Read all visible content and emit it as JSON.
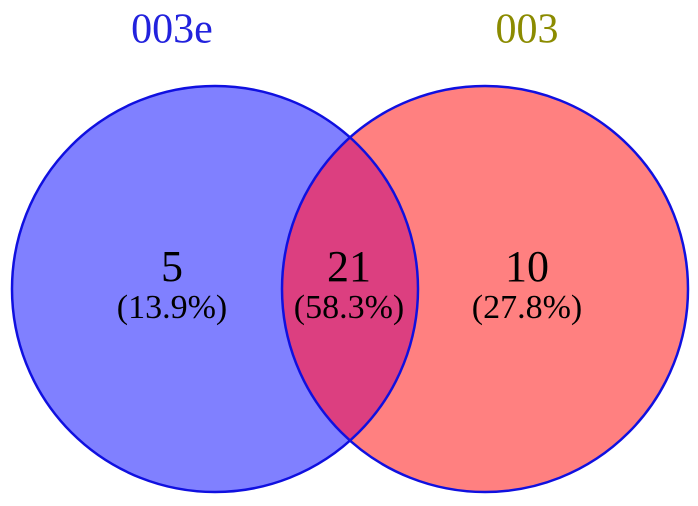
{
  "sets": [
    {
      "label": "003e",
      "color": "#2222dd"
    },
    {
      "label": "003",
      "color": "#8b8b00"
    }
  ],
  "regions": [
    {
      "count": 5,
      "percent": "(13.9%)"
    },
    {
      "count": 21,
      "percent": "(58.3%)"
    },
    {
      "count": 10,
      "percent": "(27.8%)"
    }
  ]
}
